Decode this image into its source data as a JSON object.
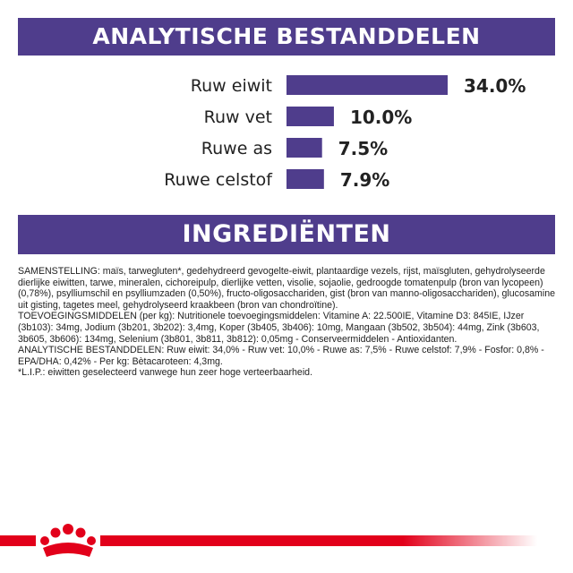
{
  "headers": {
    "analytics": "ANALYTISCHE BESTANDDELEN",
    "ingredients": "INGREDIËNTEN"
  },
  "chart_data": {
    "type": "bar",
    "orientation": "horizontal",
    "categories": [
      "Ruw eiwit",
      "Ruw vet",
      "Ruwe as",
      "Ruwe celstof"
    ],
    "values": [
      34.0,
      10.0,
      7.5,
      7.9
    ],
    "value_labels": [
      "34.0%",
      "10.0%",
      "7.5%",
      "7.9%"
    ],
    "bar_color": "#4f3d8c"
  },
  "ingredients_text": [
    "SAMENSTELLING: maïs, tarwegluten*, gedehydreerd gevogelte-eiwit, plantaardige vezels, rijst, maïsgluten, gehydrolyseerde dierlijke eiwitten, tarwe, mineralen, cichoreipulp, dierlijke vetten, visolie, sojaolie, gedroogde tomatenpulp (bron van lycopeen) (0,78%), psylliumschil en psylliumzaden (0,50%), fructo-oligosacchariden, gist (bron van manno-oligosacchariden), glucosamine uit gisting, tagetes meel, gehydrolyseerd kraakbeen (bron van chondroïtine).",
    "TOEVOEGINGSMIDDELEN (per kg): Nutritionele toevoegingsmiddelen: Vitamine A: 22.500IE, Vitamine D3: 845IE, IJzer (3b103): 34mg, Jodium (3b201, 3b202): 3,4mg, Koper (3b405, 3b406): 10mg, Mangaan (3b502, 3b504): 44mg, Zink (3b603, 3b605, 3b606): 134mg, Selenium (3b801, 3b811, 3b812): 0,05mg - Conserveermiddelen - Antioxidanten.",
    "ANALYTISCHE BESTANDDELEN: Ruw eiwit: 34,0% - Ruw vet: 10,0% - Ruwe as: 7,5% - Ruwe celstof: 7,9% - Fosfor: 0,8% - EPA/DHA: 0,42% - Per kg: Bètacaroteen: 4,3mg.",
    "*L.I.P.: eiwitten geselecteerd vanwege hun zeer hoge verteerbaarheid."
  ],
  "footer": {
    "brand_color": "#e2001a",
    "logo_icon": "royal-canin-crown-icon"
  }
}
